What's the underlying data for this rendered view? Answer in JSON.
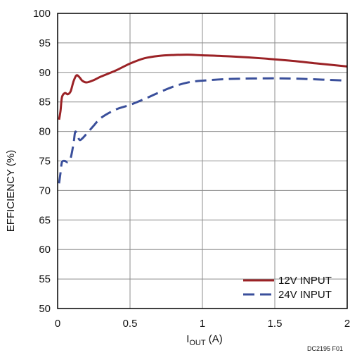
{
  "chart_data": {
    "type": "line",
    "xlabel_main": "I",
    "xlabel_sub": "OUT",
    "xlabel_unit": " (A)",
    "ylabel": "EFFICIENCY (%)",
    "figure_code": "DC2195 F01",
    "xlim": [
      0,
      2
    ],
    "ylim": [
      50,
      100
    ],
    "xticks": [
      0,
      0.5,
      1,
      1.5,
      2
    ],
    "xtick_labels": [
      "0",
      "0.5",
      "1",
      "1.5",
      "2"
    ],
    "yticks": [
      50,
      55,
      60,
      65,
      70,
      75,
      80,
      85,
      90,
      95,
      100
    ],
    "ytick_labels": [
      "50",
      "55",
      "60",
      "65",
      "70",
      "75",
      "80",
      "85",
      "90",
      "95",
      "100"
    ],
    "grid": true,
    "legend_position": "bottom-right",
    "series": [
      {
        "name": "12V INPUT",
        "color": "#9b2226",
        "dash": "solid",
        "points": [
          [
            0.01,
            82.0
          ],
          [
            0.02,
            83.5
          ],
          [
            0.03,
            85.8
          ],
          [
            0.05,
            86.5
          ],
          [
            0.07,
            86.3
          ],
          [
            0.09,
            86.8
          ],
          [
            0.11,
            88.5
          ],
          [
            0.13,
            89.5
          ],
          [
            0.15,
            89.2
          ],
          [
            0.17,
            88.6
          ],
          [
            0.2,
            88.3
          ],
          [
            0.25,
            88.7
          ],
          [
            0.3,
            89.3
          ],
          [
            0.4,
            90.3
          ],
          [
            0.5,
            91.5
          ],
          [
            0.6,
            92.4
          ],
          [
            0.7,
            92.8
          ],
          [
            0.8,
            92.95
          ],
          [
            0.9,
            93.0
          ],
          [
            1.0,
            92.9
          ],
          [
            1.2,
            92.7
          ],
          [
            1.4,
            92.4
          ],
          [
            1.6,
            92.0
          ],
          [
            1.8,
            91.5
          ],
          [
            2.0,
            91.0
          ]
        ]
      },
      {
        "name": "24V INPUT",
        "color": "#3a4f9b",
        "dash": "dashed",
        "points": [
          [
            0.01,
            71.2
          ],
          [
            0.02,
            73.0
          ],
          [
            0.03,
            74.8
          ],
          [
            0.05,
            75.0
          ],
          [
            0.07,
            74.8
          ],
          [
            0.09,
            75.5
          ],
          [
            0.11,
            78.0
          ],
          [
            0.12,
            79.8
          ],
          [
            0.13,
            79.8
          ],
          [
            0.15,
            78.6
          ],
          [
            0.17,
            78.8
          ],
          [
            0.2,
            79.6
          ],
          [
            0.25,
            81.0
          ],
          [
            0.3,
            82.3
          ],
          [
            0.4,
            83.7
          ],
          [
            0.5,
            84.5
          ],
          [
            0.6,
            85.5
          ],
          [
            0.7,
            86.6
          ],
          [
            0.8,
            87.6
          ],
          [
            0.9,
            88.3
          ],
          [
            1.0,
            88.6
          ],
          [
            1.2,
            88.9
          ],
          [
            1.5,
            89.0
          ],
          [
            1.7,
            88.9
          ],
          [
            2.0,
            88.6
          ]
        ]
      }
    ]
  }
}
